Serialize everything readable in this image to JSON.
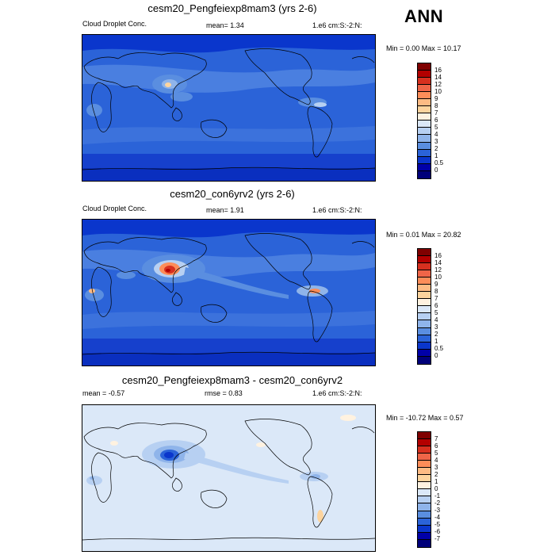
{
  "header": {
    "season": "ANN"
  },
  "panels": [
    {
      "title": "cesm20_Pengfeiexp8mam3 (yrs 2-6)",
      "left_label": "Cloud Droplet Conc.",
      "mean_label": "mean=   1.34",
      "units": "1.e6 cm:S:-2:N:",
      "minmax": "Min =  0.00 Max =  10.17",
      "colorbar": {
        "labels": [
          "16",
          "14",
          "12",
          "10",
          "9",
          "8",
          "7",
          "6",
          "5",
          "4",
          "3",
          "2",
          "1",
          "0.5",
          "0"
        ],
        "colors": [
          "#7f0000",
          "#b30000",
          "#d7301f",
          "#ef6548",
          "#fc8d59",
          "#fdbb84",
          "#fdd49e",
          "#fff2e0",
          "#dbe8f8",
          "#b7d0f2",
          "#8fb4ea",
          "#5a8ee0",
          "#2b63d8",
          "#0a36cc",
          "#0000a8",
          "#00007a"
        ]
      }
    },
    {
      "title": "cesm20_con6yrv2 (yrs 2-6)",
      "left_label": "Cloud Droplet Conc.",
      "mean_label": "mean=   1.91",
      "units": "1.e6 cm:S:-2:N:",
      "minmax": "Min =  0.01 Max =  20.82",
      "colorbar": {
        "labels": [
          "16",
          "14",
          "12",
          "10",
          "9",
          "8",
          "7",
          "6",
          "5",
          "4",
          "3",
          "2",
          "1",
          "0.5",
          "0"
        ],
        "colors": [
          "#7f0000",
          "#b30000",
          "#d7301f",
          "#ef6548",
          "#fc8d59",
          "#fdbb84",
          "#fdd49e",
          "#fff2e0",
          "#dbe8f8",
          "#b7d0f2",
          "#8fb4ea",
          "#5a8ee0",
          "#2b63d8",
          "#0a36cc",
          "#0000a8",
          "#00007a"
        ]
      }
    },
    {
      "title": "cesm20_Pengfeiexp8mam3 - cesm20_con6yrv2",
      "left_label": "mean =  -0.57",
      "mean_label": "rmse =   0.83",
      "units": "1.e6 cm:S:-2:N:",
      "minmax": "Min = -10.72 Max =   0.57",
      "colorbar": {
        "labels": [
          "7",
          "6",
          "5",
          "4",
          "3",
          "2",
          "1",
          "0",
          "-1",
          "-2",
          "-3",
          "-4",
          "-5",
          "-6",
          "-7"
        ],
        "colors": [
          "#7f0000",
          "#b30000",
          "#d7301f",
          "#ef6548",
          "#fc8d59",
          "#fdbb84",
          "#fdd49e",
          "#fff2e0",
          "#dbe8f8",
          "#b7d0f2",
          "#8fb4ea",
          "#5a8ee0",
          "#2b63d8",
          "#0a36cc",
          "#0000a8",
          "#00007a"
        ]
      }
    }
  ]
}
